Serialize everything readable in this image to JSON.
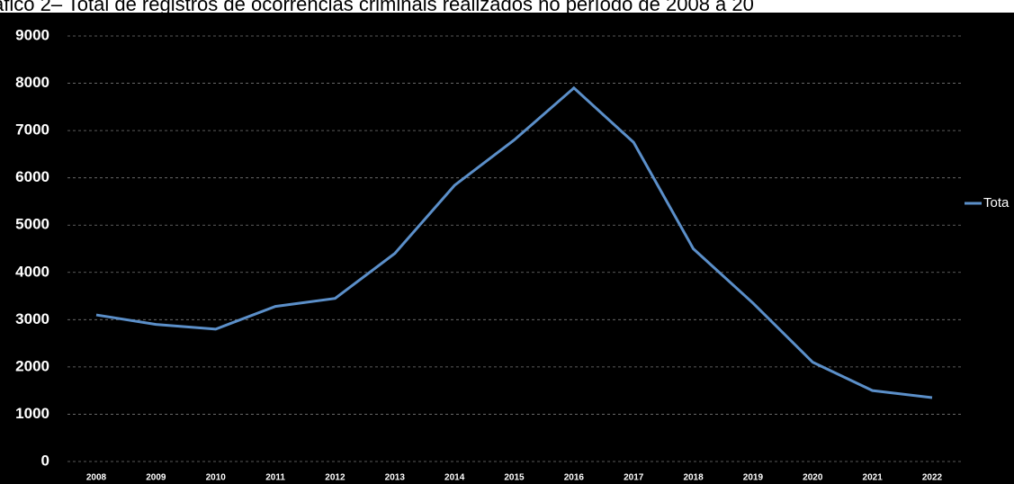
{
  "chart_data": {
    "type": "line",
    "title": "áfico 2– Total de registros de ocorrências criminais realizados no período de 2008 a 20",
    "categories": [
      "2008",
      "2009",
      "2010",
      "2011",
      "2012",
      "2013",
      "2014",
      "2015",
      "2016",
      "2017",
      "2018",
      "2019",
      "2020",
      "2021",
      "2022"
    ],
    "series": [
      {
        "name": "Tota",
        "color": "#5b8fc9",
        "values": [
          3100,
          2900,
          2800,
          3280,
          3450,
          4400,
          5840,
          6800,
          7900,
          6750,
          4500,
          3350,
          2100,
          1500,
          1350
        ]
      }
    ],
    "ylim": [
      0,
      9000
    ],
    "yticks": [
      0,
      1000,
      2000,
      3000,
      4000,
      5000,
      6000,
      7000,
      8000,
      9000
    ],
    "grid": true,
    "legend": "right"
  }
}
